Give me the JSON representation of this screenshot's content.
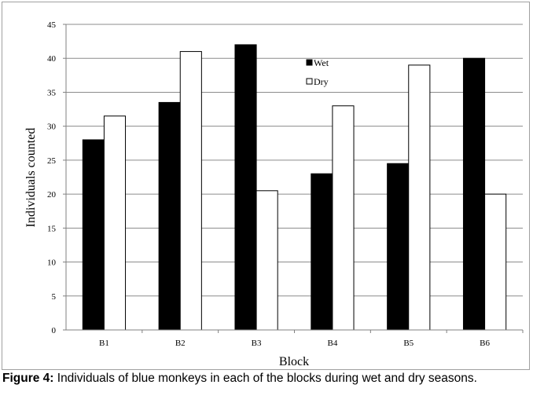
{
  "chart_data": {
    "type": "bar",
    "categories": [
      "B1",
      "B2",
      "B3",
      "B4",
      "B5",
      "B6"
    ],
    "series": [
      {
        "name": "Wet",
        "values": [
          28,
          33.5,
          42,
          23,
          24.5,
          40
        ],
        "color": "#000000"
      },
      {
        "name": "Dry",
        "values": [
          31.5,
          41,
          20.5,
          33,
          39,
          20
        ],
        "color": "#ffffff"
      }
    ],
    "title": "",
    "xlabel": "Block",
    "ylabel": "Individuals counted",
    "ylim": [
      0,
      45
    ],
    "yticks": [
      "0",
      "5",
      "10",
      "15",
      "20",
      "25",
      "30",
      "35",
      "40",
      "45"
    ],
    "grid": true,
    "legend_position": "top-center"
  },
  "caption": {
    "label": "Figure 4:",
    "text": " Individuals of blue monkeys in each of the blocks during wet and dry seasons."
  }
}
